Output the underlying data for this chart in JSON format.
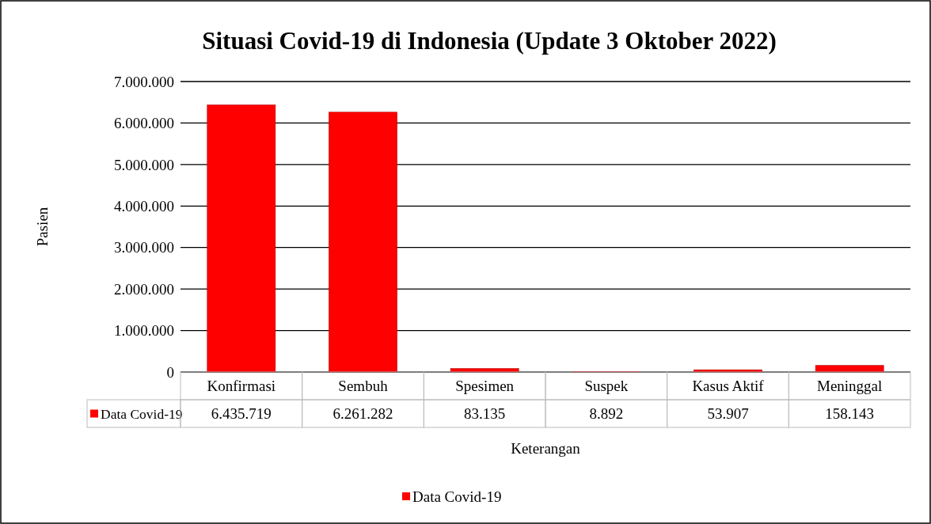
{
  "chart_data": {
    "type": "bar",
    "title": "Situasi Covid-19 di Indonesia (Update 3 Oktober 2022)",
    "xlabel": "Keterangan",
    "ylabel": "Pasien",
    "categories": [
      "Konfirmasi",
      "Sembuh",
      "Spesimen",
      "Suspek",
      "Kasus Aktif",
      "Meninggal"
    ],
    "series": [
      {
        "name": "Data Covid-19",
        "color": "#ff0000",
        "values": [
          6435719,
          6261282,
          83135,
          8892,
          53907,
          158143
        ],
        "value_labels": [
          "6.435.719",
          "6.261.282",
          "83.135",
          "8.892",
          "53.907",
          "158.143"
        ]
      }
    ],
    "ylim": [
      0,
      7000000
    ],
    "yticks": [
      {
        "value": 0,
        "label": "0"
      },
      {
        "value": 1000000,
        "label": "1.000.000"
      },
      {
        "value": 2000000,
        "label": "2.000.000"
      },
      {
        "value": 3000000,
        "label": "3.000.000"
      },
      {
        "value": 4000000,
        "label": "4.000.000"
      },
      {
        "value": 5000000,
        "label": "5.000.000"
      },
      {
        "value": 6000000,
        "label": "6.000.000"
      },
      {
        "value": 7000000,
        "label": "7.000.000"
      }
    ],
    "grid": "y",
    "legend": "bottom"
  }
}
